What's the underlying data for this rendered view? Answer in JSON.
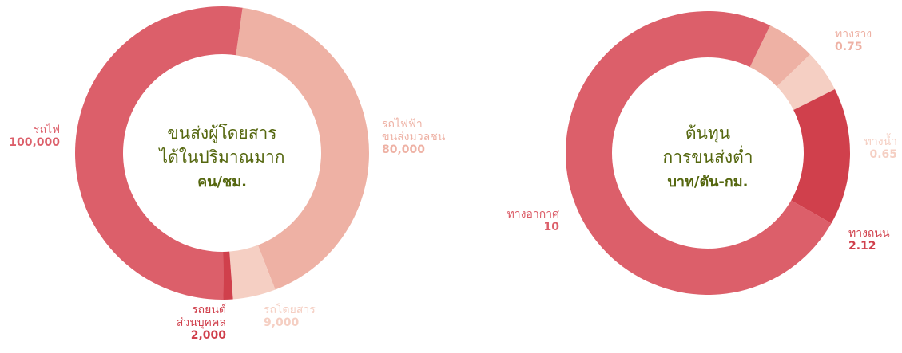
{
  "chart_data": [
    {
      "type": "donut",
      "title": [
        "ขนส่งผู้โดยสาร",
        "ได้ในปริมาณมาก",
        "คน/ชม."
      ],
      "categories": [
        [
          "รถไฟฟ้า",
          "ขนส่งมวลชน"
        ],
        [
          "รถโดยสาร"
        ],
        [
          "รถยนต์",
          "ส่วนบุคคล"
        ],
        [
          "รถไฟ"
        ]
      ],
      "values": [
        80000,
        9000,
        2000,
        100000
      ],
      "value_labels": [
        "80,000",
        "9,000",
        "2,000",
        "100,000"
      ],
      "colors": [
        "#eeb1a4",
        "#f5cfc3",
        "#d0404c",
        "#dc5f6a"
      ]
    },
    {
      "type": "donut",
      "title": [
        "ต้นทุน",
        "การขนส่งต่ำ",
        "บาท/ตัน-กม."
      ],
      "categories": [
        [
          "ทางราง"
        ],
        [
          "ทางน้ำ"
        ],
        [
          "ทางถนน"
        ],
        [
          "ทางอากาศ"
        ]
      ],
      "values": [
        0.75,
        0.65,
        2.12,
        10
      ],
      "colors": [
        "#eeb1a4",
        "#f5cfc3",
        "#d0404c",
        "#dc5f6a"
      ]
    }
  ]
}
